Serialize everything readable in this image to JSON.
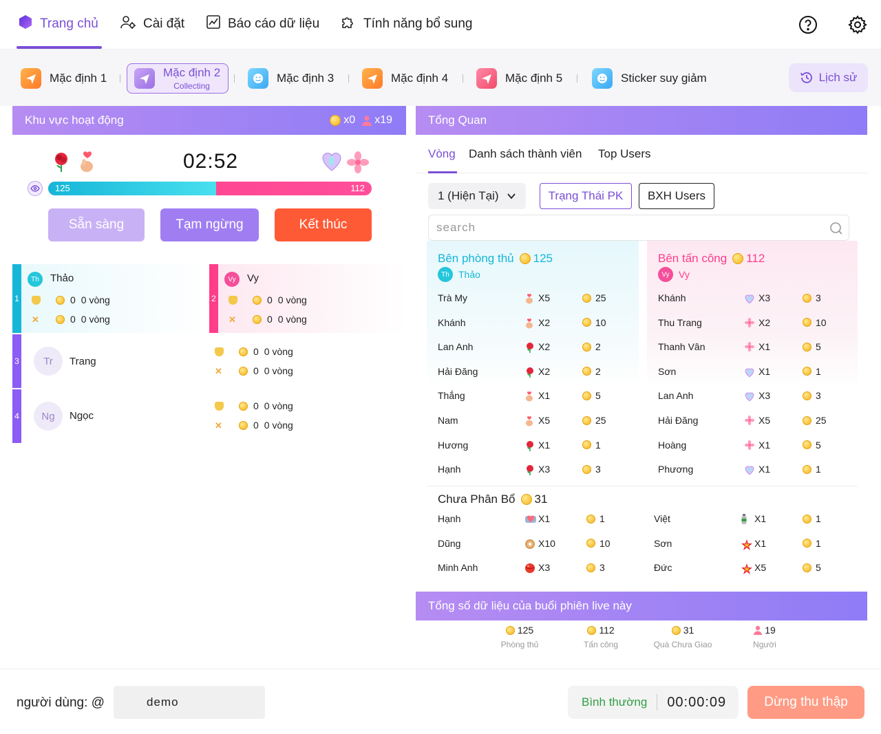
{
  "nav": {
    "home": "Trang chủ",
    "settings": "Cài đặt",
    "report": "Báo cáo dữ liệu",
    "extras": "Tính năng bổ sung"
  },
  "presets": {
    "p1": "Mặc định 1",
    "p2": "Mặc định 2",
    "p2_status": "Collecting",
    "p3": "Mặc định 3",
    "p4": "Mặc định 4",
    "p5": "Mặc định 5",
    "p6": "Sticker suy giảm",
    "history": "Lịch sử"
  },
  "activity": {
    "title": "Khu vực hoạt động",
    "coins": "x0",
    "users": "x19",
    "timer": "02:52",
    "left_score": "125",
    "right_score": "112",
    "left_fraction": 0.52,
    "btn_ready": "Sẵn sàng",
    "btn_pause": "Tạm ngừng",
    "btn_end": "Kết thúc"
  },
  "players": [
    {
      "num": "1",
      "name": "Thảo",
      "initials": "Th",
      "def": "0",
      "def_rounds": "0 vòng",
      "atk": "0",
      "atk_rounds": "0 vòng"
    },
    {
      "num": "2",
      "name": "Vy",
      "initials": "Vy",
      "def": "0",
      "def_rounds": "0 vòng",
      "atk": "0",
      "atk_rounds": "0 vòng"
    },
    {
      "num": "3",
      "name": "Trang",
      "initials": "Tr",
      "def": "0",
      "def_rounds": "0 vòng",
      "atk": "0",
      "atk_rounds": "0 vòng"
    },
    {
      "num": "4",
      "name": "Ngọc",
      "initials": "Ng",
      "def": "0",
      "def_rounds": "0 vòng",
      "atk": "0",
      "atk_rounds": "0 vòng"
    }
  ],
  "overview": {
    "title": "Tổng Quan",
    "tab_round": "Vòng",
    "tab_members": "Danh sách thành viên",
    "tab_top": "Top Users",
    "round_select": "1 (Hiện Tại)",
    "btn_pk": "Trạng Thái PK",
    "btn_rank": "BXH Users",
    "search_placeholder": "search",
    "defense_title": "Bên phòng thủ",
    "defense_total": "125",
    "defense_host": "Thảo",
    "defense_host_initials": "Th",
    "attack_title": "Bên tấn công",
    "attack_total": "112",
    "attack_host": "Vy",
    "attack_host_initials": "Vy"
  },
  "defense_rows": [
    {
      "name": "Trà My",
      "gift": "finger-heart",
      "qty": "X5",
      "coins": "25"
    },
    {
      "name": "Khánh",
      "gift": "finger-heart",
      "qty": "X2",
      "coins": "10"
    },
    {
      "name": "Lan Anh",
      "gift": "rose",
      "qty": "X2",
      "coins": "2"
    },
    {
      "name": "Hải Đăng",
      "gift": "rose",
      "qty": "X2",
      "coins": "2"
    },
    {
      "name": "Thắng",
      "gift": "finger-heart",
      "qty": "X1",
      "coins": "5"
    },
    {
      "name": "Nam",
      "gift": "finger-heart",
      "qty": "X5",
      "coins": "25"
    },
    {
      "name": "Hương",
      "gift": "rose",
      "qty": "X1",
      "coins": "1"
    },
    {
      "name": "Hạnh",
      "gift": "rose",
      "qty": "X3",
      "coins": "3"
    }
  ],
  "attack_rows": [
    {
      "name": "Khánh",
      "gift": "heart-hand",
      "qty": "X3",
      "coins": "3"
    },
    {
      "name": "Thu Trang",
      "gift": "flower",
      "qty": "X2",
      "coins": "10"
    },
    {
      "name": "Thanh Vân",
      "gift": "flower",
      "qty": "X1",
      "coins": "5"
    },
    {
      "name": "Sơn",
      "gift": "heart-hand",
      "qty": "X1",
      "coins": "1"
    },
    {
      "name": "Lan Anh",
      "gift": "heart-hand",
      "qty": "X3",
      "coins": "3"
    },
    {
      "name": "Hải Đăng",
      "gift": "flower",
      "qty": "X5",
      "coins": "25"
    },
    {
      "name": "Hoàng",
      "gift": "flower",
      "qty": "X1",
      "coins": "5"
    },
    {
      "name": "Phương",
      "gift": "heart-hand",
      "qty": "X1",
      "coins": "1"
    }
  ],
  "unassigned": {
    "title": "Chưa Phân Bổ",
    "total": "31",
    "left": [
      {
        "name": "Hạnh",
        "gift": "heart-box",
        "qty": "X1",
        "coins": "1"
      },
      {
        "name": "Dũng",
        "gift": "donut",
        "qty": "X10",
        "coins": "10"
      },
      {
        "name": "Minh Anh",
        "gift": "ball",
        "qty": "X3",
        "coins": "3"
      }
    ],
    "right": [
      {
        "name": "Việt",
        "gift": "bottle",
        "qty": "X1",
        "coins": "1"
      },
      {
        "name": "Sơn",
        "gift": "star",
        "qty": "X1",
        "coins": "1"
      },
      {
        "name": "Đức",
        "gift": "star",
        "qty": "X5",
        "coins": "5"
      }
    ]
  },
  "session": {
    "title": "Tổng số dữ liệu của buổi phiên live này",
    "defense_value": "125",
    "defense_label": "Phòng thủ",
    "attack_value": "112",
    "attack_label": "Tấn công",
    "unsent_value": "31",
    "unsent_label": "Quà Chưa Giao",
    "people_value": "19",
    "people_label": "Người"
  },
  "footer": {
    "user_label": "người dùng: @",
    "username": "demo",
    "mode": "Bình thường",
    "elapsed": "00:00:09",
    "stop_btn": "Dừng thu thập"
  },
  "colors": {
    "accent": "#7b4fd6",
    "defense": "#16b6d8",
    "attack": "#ff3d8b",
    "end_button": "#ff5a36"
  }
}
